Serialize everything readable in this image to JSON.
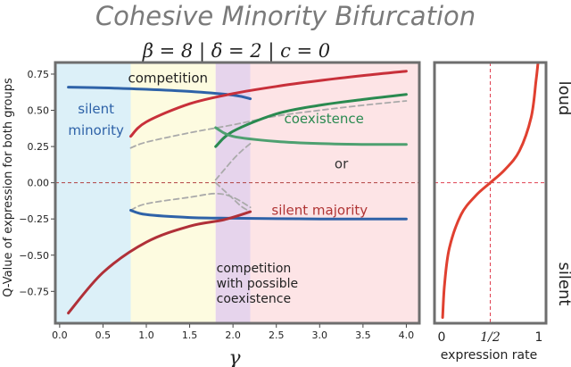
{
  "chart_data": [
    {
      "type": "line",
      "title": "Cohesive Minority Bifurcation",
      "subtitle": "β = 8 | δ = 2 | c = 0",
      "xlabel": "γ",
      "ylabel": "Q-Value of expression for both groups",
      "xlim": [
        -0.05,
        4.15
      ],
      "ylim": [
        -0.97,
        0.83
      ],
      "x_ticks": [
        "0.0",
        "0.5",
        "1.0",
        "1.5",
        "2.0",
        "2.5",
        "3.0",
        "3.5",
        "4.0"
      ],
      "y_ticks": [
        "0.75",
        "0.50",
        "0.25",
        "0.00",
        "−0.25",
        "−0.50",
        "−0.75"
      ],
      "grid": false,
      "regions": [
        {
          "label": "silent minority",
          "line1": "silent",
          "line2": "minority",
          "x_start": -0.05,
          "x_end": 0.82,
          "color": "#dcf0f8",
          "label_color": "#2e62a8"
        },
        {
          "label": "competition",
          "x_start": 0.82,
          "x_end": 1.8,
          "color": "#fdfbe0",
          "label_color": "#222222"
        },
        {
          "label": "competition with possible coexistence",
          "lines": [
            "competition",
            "with possible",
            "coexistence"
          ],
          "x_start": 1.8,
          "x_end": 2.2,
          "color": "#e6d4ec",
          "label_color": "#222222"
        },
        {
          "label": "coexistence or silent majority",
          "x_start": 2.2,
          "x_end": 4.15,
          "color": "#fde4e6"
        }
      ],
      "annotations": [
        {
          "text": "coexistence",
          "color": "#2a8a50"
        },
        {
          "text": "or",
          "color": "#333333"
        },
        {
          "text": "silent majority",
          "color": "#b03535"
        }
      ],
      "series": [
        {
          "role": "stable",
          "color": "#2e62a8",
          "x": [
            0.1,
            0.5,
            1.0,
            1.5,
            2.0,
            2.2
          ],
          "y": [
            0.66,
            0.655,
            0.645,
            0.63,
            0.605,
            0.58
          ]
        },
        {
          "role": "stable",
          "color": "#c8303a",
          "x": [
            0.82,
            1.0,
            1.5,
            2.0,
            2.5,
            3.0,
            3.5,
            4.0
          ],
          "y": [
            0.32,
            0.42,
            0.545,
            0.615,
            0.665,
            0.705,
            0.74,
            0.77
          ]
        },
        {
          "role": "stable",
          "color": "#2a8a50",
          "x": [
            1.8,
            2.0,
            2.5,
            3.0,
            3.5,
            4.0
          ],
          "y": [
            0.25,
            0.355,
            0.475,
            0.535,
            0.575,
            0.61
          ]
        },
        {
          "role": "stable",
          "color": "#4ea070",
          "x": [
            1.8,
            2.0,
            2.5,
            3.0,
            3.5,
            4.0
          ],
          "y": [
            0.38,
            0.32,
            0.285,
            0.27,
            0.265,
            0.265
          ]
        },
        {
          "role": "stable",
          "color": "#2e62a8",
          "x": [
            0.82,
            1.0,
            1.5,
            2.0,
            2.5,
            3.0,
            3.5,
            4.0
          ],
          "y": [
            -0.19,
            -0.22,
            -0.24,
            -0.245,
            -0.248,
            -0.25,
            -0.25,
            -0.25
          ]
        },
        {
          "role": "stable",
          "color": "#b03038",
          "x": [
            0.1,
            0.5,
            1.0,
            1.5,
            1.9,
            2.2
          ],
          "y": [
            -0.9,
            -0.62,
            -0.41,
            -0.3,
            -0.255,
            -0.2
          ]
        },
        {
          "role": "unstable",
          "color": "#aaaaaa",
          "x": [
            0.82,
            1.0,
            1.5,
            2.0,
            2.5,
            3.0,
            3.5,
            4.0
          ],
          "y": [
            0.24,
            0.28,
            0.345,
            0.4,
            0.46,
            0.5,
            0.535,
            0.565
          ]
        },
        {
          "role": "unstable",
          "color": "#aaaaaa",
          "x": [
            1.8,
            1.9,
            2.0,
            2.1,
            2.2
          ],
          "y": [
            0.0,
            -0.055,
            -0.11,
            -0.165,
            -0.2
          ]
        },
        {
          "role": "unstable",
          "color": "#aaaaaa",
          "x": [
            1.8,
            1.9,
            2.0,
            2.1,
            2.2
          ],
          "y": [
            0.02,
            0.09,
            0.16,
            0.22,
            0.27
          ]
        },
        {
          "role": "unstable",
          "color": "#aaaaaa",
          "x": [
            0.82,
            1.0,
            1.5,
            1.8,
            2.0,
            2.2
          ],
          "y": [
            -0.19,
            -0.145,
            -0.1,
            -0.075,
            -0.1,
            -0.17
          ]
        }
      ],
      "zero_line": {
        "y": 0.0,
        "color": "#b04040",
        "style": "dashed"
      }
    },
    {
      "type": "line",
      "xlabel": "expression rate",
      "x_ticks": [
        "0",
        "1/2",
        "1"
      ],
      "ylabels": {
        "top": "loud",
        "bottom": "silent"
      },
      "xlim": [
        0,
        1
      ],
      "ylim": [
        -0.97,
        0.83
      ],
      "series": [
        {
          "color": "#e04030",
          "x": [
            0.01,
            0.03,
            0.08,
            0.2,
            0.35,
            0.5,
            0.65,
            0.8,
            0.92,
            0.97,
            0.99
          ],
          "y": [
            -0.93,
            -0.7,
            -0.45,
            -0.22,
            -0.09,
            0.0,
            0.09,
            0.22,
            0.45,
            0.7,
            0.82
          ]
        }
      ],
      "reference_lines": [
        {
          "axis": "x",
          "value": 0.5,
          "color": "#e04050",
          "style": "dashed"
        },
        {
          "axis": "y",
          "value": 0.0,
          "color": "#e04050",
          "style": "dashed"
        }
      ]
    }
  ]
}
